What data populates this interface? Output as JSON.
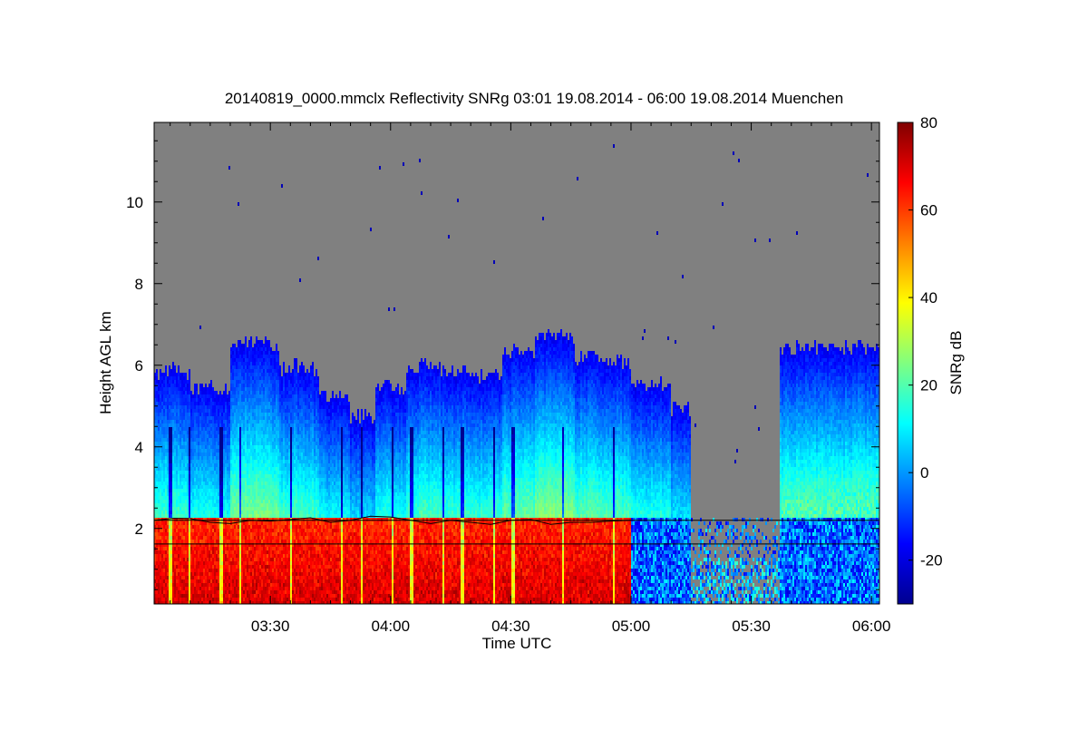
{
  "chart_data": {
    "type": "heatmap",
    "title": "20140819_0000.mmclx Reflectivity SNRg   03:01 19.08.2014 - 06:00 19.08.2014 Muenchen",
    "xlabel": "Time UTC",
    "ylabel": "Height AGL km",
    "x_range_minutes": [
      181,
      362
    ],
    "x_ticks": [
      {
        "value": 210,
        "label": "03:30"
      },
      {
        "value": 240,
        "label": "04:00"
      },
      {
        "value": 270,
        "label": "04:30"
      },
      {
        "value": 300,
        "label": "05:00"
      },
      {
        "value": 330,
        "label": "05:30"
      },
      {
        "value": 360,
        "label": "06:00"
      }
    ],
    "x_minor_step_minutes": 5,
    "y_range": [
      0.15,
      11.95
    ],
    "y_ticks": [
      {
        "value": 2,
        "label": "2"
      },
      {
        "value": 4,
        "label": "4"
      },
      {
        "value": 6,
        "label": "6"
      },
      {
        "value": 8,
        "label": "8"
      },
      {
        "value": 10,
        "label": "10"
      }
    ],
    "y_minor_step": 0.5,
    "background_color": "#808080",
    "colorbar": {
      "label": "SNRg dB",
      "range": [
        -30,
        80
      ],
      "ticks": [
        {
          "value": -20,
          "label": "-20"
        },
        {
          "value": 0,
          "label": "0"
        },
        {
          "value": 20,
          "label": "20"
        },
        {
          "value": 40,
          "label": "40"
        },
        {
          "value": 60,
          "label": "60"
        },
        {
          "value": 80,
          "label": "80"
        }
      ],
      "colormap": [
        "#00008f",
        "#0000ff",
        "#0080ff",
        "#00ffff",
        "#80ff80",
        "#ffff00",
        "#ff8000",
        "#ff0000",
        "#800000"
      ]
    },
    "reference_lines_km": [
      2.2,
      1.62
    ],
    "melting_layer": {
      "x": [
        181,
        186,
        190,
        195,
        200,
        205,
        210,
        215,
        220,
        225,
        230,
        235,
        240,
        245,
        250,
        255,
        260,
        265,
        270,
        275,
        280,
        285,
        290,
        295,
        300
      ],
      "y": [
        2.2,
        2.25,
        2.24,
        2.15,
        2.12,
        2.2,
        2.18,
        2.22,
        2.26,
        2.15,
        2.2,
        2.3,
        2.28,
        2.2,
        2.12,
        2.2,
        2.15,
        2.1,
        2.2,
        2.22,
        2.1,
        2.15,
        2.15,
        2.18,
        2.2
      ]
    },
    "cloud_columns": [
      {
        "x": [
          181,
          190
        ],
        "top": 5.9,
        "peak": 42
      },
      {
        "x": [
          190,
          200
        ],
        "top": 5.5,
        "peak": 44
      },
      {
        "x": [
          200,
          212
        ],
        "top": 6.6,
        "peak": 48
      },
      {
        "x": [
          212,
          222
        ],
        "top": 6.0,
        "peak": 44
      },
      {
        "x": [
          222,
          230
        ],
        "top": 5.3,
        "peak": 36
      },
      {
        "x": [
          230,
          236
        ],
        "top": 4.8,
        "peak": 30
      },
      {
        "x": [
          236,
          244
        ],
        "top": 5.5,
        "peak": 44
      },
      {
        "x": [
          244,
          254
        ],
        "top": 6.0,
        "peak": 52
      },
      {
        "x": [
          254,
          262
        ],
        "top": 5.9,
        "peak": 46
      },
      {
        "x": [
          262,
          268
        ],
        "top": 5.8,
        "peak": 38
      },
      {
        "x": [
          268,
          276
        ],
        "top": 6.4,
        "peak": 44
      },
      {
        "x": [
          276,
          286
        ],
        "top": 6.8,
        "peak": 46
      },
      {
        "x": [
          286,
          294
        ],
        "top": 6.3,
        "peak": 40
      },
      {
        "x": [
          294,
          300
        ],
        "top": 6.1,
        "peak": 30
      },
      {
        "x": [
          300,
          310
        ],
        "top": 5.6,
        "peak": 18
      },
      {
        "x": [
          310,
          315
        ],
        "top": 5.0,
        "peak": 10
      },
      {
        "x": [
          337,
          352
        ],
        "top": 6.5,
        "peak": 20
      },
      {
        "x": [
          352,
          362
        ],
        "top": 6.5,
        "peak": 18
      }
    ]
  }
}
